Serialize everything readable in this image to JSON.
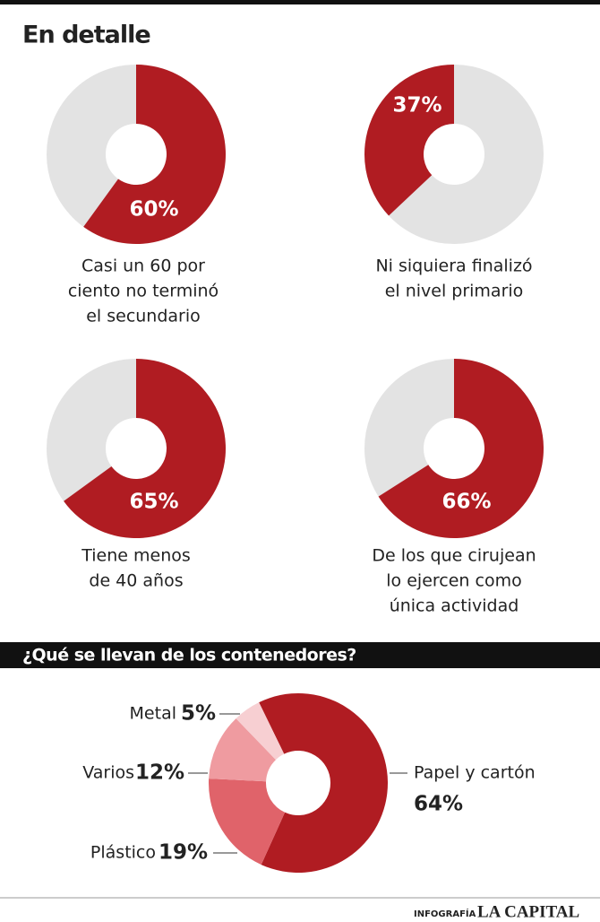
{
  "header": {
    "title": "En detalle"
  },
  "section_title": "¿Qué se llevan de los contenedores?",
  "footer": {
    "credit": "INFOGRAFÍA",
    "brand": "LA CAPITAL"
  },
  "chart_data": [
    {
      "type": "donut",
      "values": [
        60
      ],
      "value_labels": [
        "60%"
      ],
      "color": "#b01c22",
      "track_color": "#e3e3e3",
      "direction": "clockwise",
      "caption": [
        "Casi un 60 por",
        "ciento no terminó",
        "el secundario"
      ]
    },
    {
      "type": "donut",
      "values": [
        37
      ],
      "value_labels": [
        "37%"
      ],
      "color": "#b01c22",
      "track_color": "#e3e3e3",
      "direction": "counterclockwise",
      "caption": [
        "Ni siquiera finalizó",
        "el nivel primario"
      ]
    },
    {
      "type": "donut",
      "values": [
        65
      ],
      "value_labels": [
        "65%"
      ],
      "color": "#b01c22",
      "track_color": "#e3e3e3",
      "direction": "clockwise",
      "caption": [
        "Tiene menos",
        "de 40 años"
      ]
    },
    {
      "type": "donut",
      "values": [
        66
      ],
      "value_labels": [
        "66%"
      ],
      "color": "#b01c22",
      "track_color": "#e3e3e3",
      "direction": "clockwise",
      "caption": [
        "De los que cirujean",
        "lo ejercen como",
        "única actividad"
      ]
    },
    {
      "type": "pie",
      "categories": [
        "Papel y cartón",
        "Plástico",
        "Varios",
        "Metal"
      ],
      "values": [
        64,
        19,
        12,
        5
      ],
      "value_labels": [
        "64%",
        "19%",
        "12%",
        "5%"
      ],
      "colors": [
        "#b01c22",
        "#e0636a",
        "#ef9ba0",
        "#f7cfd2"
      ]
    }
  ]
}
